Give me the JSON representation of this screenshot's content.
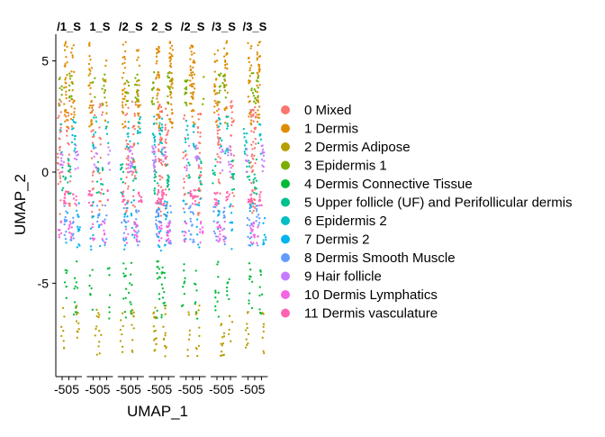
{
  "chart_data": {
    "type": "scatter",
    "title": "",
    "xlabel": "UMAP_1",
    "ylabel": "UMAP_2",
    "ylim": [
      -9.2,
      6.2
    ],
    "y_ticks": [
      5,
      0,
      -5
    ],
    "y_tick_labels": [
      "5",
      "0",
      "-5"
    ],
    "x_tick_labels": [
      "-5",
      "0",
      "5"
    ],
    "grid": false,
    "legend_position": "right",
    "facets": [
      "/1_S",
      "1_S",
      "/2_S",
      "2_S",
      "/2_S",
      "/3_S",
      "/3_S"
    ],
    "clusters": [
      {
        "name": "0 Mixed",
        "color": "#F8766D"
      },
      {
        "name": "1 Dermis",
        "color": "#DE8C00"
      },
      {
        "name": "2 Dermis Adipose",
        "color": "#B79F00"
      },
      {
        "name": "3 Epidermis 1",
        "color": "#7CAE00"
      },
      {
        "name": "4 Dermis Connective Tissue",
        "color": "#00BA38"
      },
      {
        "name": "5 Upper follicle (UF) and Perifollicular dermis",
        "color": "#00C08B"
      },
      {
        "name": "6 Epidermis 2",
        "color": "#00BFC4"
      },
      {
        "name": "7 Dermis 2",
        "color": "#00B4F0"
      },
      {
        "name": "8 Dermis Smooth Muscle",
        "color": "#619CFF"
      },
      {
        "name": "9 Hair follicle",
        "color": "#C77CFF"
      },
      {
        "name": "10 Dermis Lymphatics",
        "color": "#F564E3"
      },
      {
        "name": "11 Dermis vasculature",
        "color": "#FF64B0"
      }
    ],
    "cluster_y_ranges": [
      [
        -2.0,
        3.2
      ],
      [
        2.0,
        5.9
      ],
      [
        -8.3,
        -6.0
      ],
      [
        3.0,
        4.5
      ],
      [
        -6.6,
        -4.0
      ],
      [
        -1.0,
        0.6
      ],
      [
        0.8,
        2.5
      ],
      [
        -3.6,
        -1.2
      ],
      [
        -3.3,
        -1.5
      ],
      [
        0.0,
        1.2
      ],
      [
        -3.2,
        -2.2
      ],
      [
        -1.5,
        -0.8
      ]
    ]
  }
}
